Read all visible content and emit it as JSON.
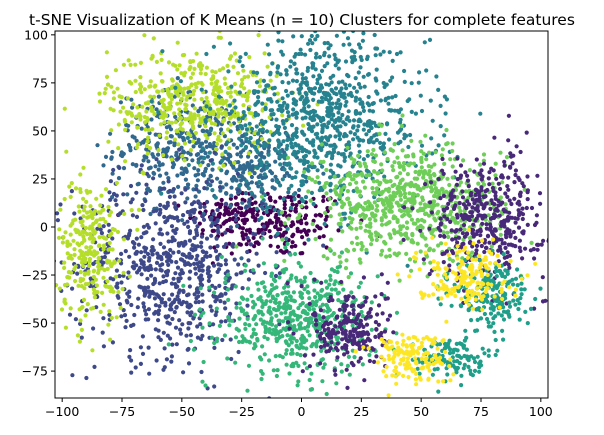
{
  "chart_data": {
    "type": "scatter",
    "title": "t-SNE Visualization of K Means (n = 10) Clusters for complete features",
    "xlabel": "",
    "ylabel": "",
    "xlim": [
      -103,
      103
    ],
    "ylim": [
      -89,
      102
    ],
    "xticks": [
      -100,
      -75,
      -50,
      -25,
      0,
      25,
      50,
      75,
      100
    ],
    "yticks": [
      -75,
      -50,
      -25,
      0,
      25,
      50,
      75,
      100
    ],
    "grid": false,
    "legend": "none",
    "colormap": "viridis",
    "clusters": [
      {
        "cluster": 0,
        "color": "#440154",
        "blobs": [
          {
            "center": [
              -12,
              2
            ],
            "spread": [
              16,
              9
            ],
            "count": 220
          },
          {
            "center": [
              -30,
              8
            ],
            "spread": [
              6,
              4
            ],
            "count": 60
          }
        ]
      },
      {
        "cluster": 1,
        "color": "#482878",
        "blobs": [
          {
            "center": [
              78,
              5
            ],
            "spread": [
              12,
              16
            ],
            "count": 400
          },
          {
            "center": [
              20,
              -53
            ],
            "spread": [
              8,
              11
            ],
            "count": 220
          }
        ]
      },
      {
        "cluster": 2,
        "color": "#3e4989",
        "blobs": [
          {
            "center": [
              -55,
              -20
            ],
            "spread": [
              20,
              24
            ],
            "count": 700
          }
        ]
      },
      {
        "cluster": 3,
        "color": "#31688e",
        "blobs": [
          {
            "center": [
              -50,
              42
            ],
            "spread": [
              14,
              14
            ],
            "count": 320
          },
          {
            "center": [
              -20,
              30
            ],
            "spread": [
              10,
              12
            ],
            "count": 180
          }
        ]
      },
      {
        "cluster": 4,
        "color": "#26828e",
        "blobs": [
          {
            "center": [
              8,
              55
            ],
            "spread": [
              22,
              22
            ],
            "count": 850
          }
        ]
      },
      {
        "cluster": 5,
        "color": "#1f9e89",
        "blobs": [
          {
            "center": [
              80,
              -35
            ],
            "spread": [
              8,
              10
            ],
            "count": 200
          },
          {
            "center": [
              62,
              -68
            ],
            "spread": [
              7,
              5
            ],
            "count": 110
          }
        ]
      },
      {
        "cluster": 6,
        "color": "#35b779",
        "blobs": [
          {
            "center": [
              -2,
              -48
            ],
            "spread": [
              16,
              14
            ],
            "count": 550
          }
        ]
      },
      {
        "cluster": 7,
        "color": "#6ece58",
        "blobs": [
          {
            "center": [
              45,
              12
            ],
            "spread": [
              20,
              15
            ],
            "count": 700
          }
        ]
      },
      {
        "cluster": 8,
        "color": "#b5de2b",
        "blobs": [
          {
            "center": [
              -45,
              65
            ],
            "spread": [
              18,
              14
            ],
            "count": 450
          },
          {
            "center": [
              -88,
              -12
            ],
            "spread": [
              7,
              18
            ],
            "count": 260
          }
        ]
      },
      {
        "cluster": 9,
        "color": "#fde725",
        "blobs": [
          {
            "center": [
              68,
              -25
            ],
            "spread": [
              10,
              8
            ],
            "count": 170
          },
          {
            "center": [
              45,
              -68
            ],
            "spread": [
              8,
              7
            ],
            "count": 150
          }
        ]
      }
    ]
  }
}
